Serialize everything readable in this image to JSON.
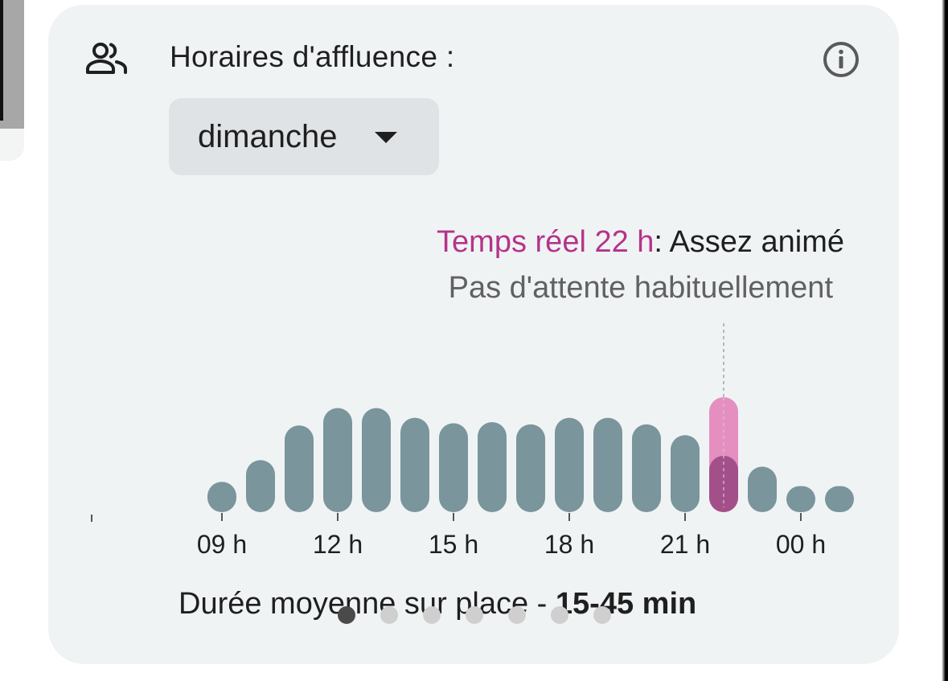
{
  "header": {
    "title": "Horaires d'affluence :",
    "icon": "people-icon",
    "info_icon": "info-icon"
  },
  "day_selector": {
    "selected": "dimanche",
    "icon": "caret-down-icon"
  },
  "live": {
    "label": "Temps réel 22 h",
    "separator": ":",
    "status": "Assez animé",
    "wait": "Pas d'attente habituellement",
    "accent_color": "#b4348a"
  },
  "chart_data": {
    "type": "bar",
    "hours": [
      6,
      7,
      8,
      9,
      10,
      11,
      12,
      13,
      14,
      15,
      16,
      17,
      18,
      19,
      20,
      21,
      22,
      23,
      0,
      1
    ],
    "values": [
      0,
      0,
      0,
      28,
      48,
      80,
      96,
      96,
      87,
      82,
      83,
      81,
      87,
      87,
      81,
      71,
      52,
      42,
      24,
      12
    ],
    "live_value": 106,
    "live_hour_index": 16,
    "tick_labels": [
      "09 h",
      "12 h",
      "15 h",
      "18 h",
      "21 h",
      "00 h"
    ],
    "tick_hour_index": [
      3,
      6,
      9,
      12,
      15,
      18
    ],
    "bar_color": "#7a959c",
    "live_color": "#e58fc1",
    "current_color": "#a3508a",
    "ylim": [
      0,
      106
    ]
  },
  "footer": {
    "duration_label": "Durée moyenne sur place - ",
    "duration_value": "15-45 min"
  },
  "pager": {
    "count": 7,
    "active": 0
  }
}
